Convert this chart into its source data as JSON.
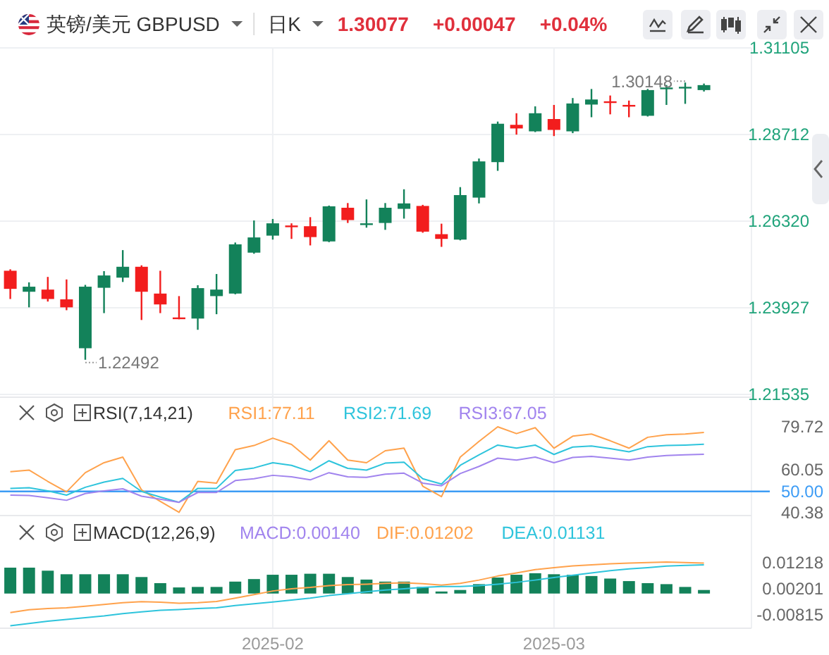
{
  "chart_data": [
    {
      "type": "candlestick",
      "title": "英镑/美元 GBPUSD",
      "subtitle": "日K",
      "annotations": [
        "1.30077",
        "+0.00047",
        "+0.04%",
        "1.22492",
        "1.30148"
      ],
      "categories": [
        null,
        null,
        null,
        null,
        null,
        null,
        null,
        null,
        null,
        null,
        null,
        null,
        null,
        null,
        "2025-02",
        null,
        null,
        null,
        null,
        null,
        null,
        null,
        null,
        null,
        null,
        null,
        null,
        null,
        null,
        "2025-03",
        null,
        null,
        null,
        null,
        null,
        null,
        null,
        null
      ],
      "ohlc": [
        [
          1.2495,
          1.2499,
          1.2417,
          1.2445
        ],
        [
          1.2437,
          1.2463,
          1.2394,
          1.2451
        ],
        [
          1.2443,
          1.2478,
          1.241,
          1.2417
        ],
        [
          1.2416,
          1.2471,
          1.2386,
          1.2394
        ],
        [
          1.2281,
          1.2456,
          1.22492,
          1.2451
        ],
        [
          1.2448,
          1.2494,
          1.2378,
          1.2482
        ],
        [
          1.2476,
          1.2552,
          1.2464,
          1.2506
        ],
        [
          1.2506,
          1.251,
          1.2359,
          1.2437
        ],
        [
          1.2432,
          1.2495,
          1.2378,
          1.2402
        ],
        [
          1.2366,
          1.2425,
          1.2361,
          1.2363
        ],
        [
          1.2363,
          1.2455,
          1.2332,
          1.2447
        ],
        [
          1.2425,
          1.2486,
          1.2375,
          1.2443
        ],
        [
          1.2432,
          1.2573,
          1.243,
          1.2568
        ],
        [
          1.2545,
          1.2634,
          1.2542,
          1.2587
        ],
        [
          1.2592,
          1.2638,
          1.2581,
          1.2626
        ],
        [
          1.262,
          1.2626,
          1.2583,
          1.2617
        ],
        [
          1.2618,
          1.2643,
          1.2565,
          1.2588
        ],
        [
          1.2576,
          1.2675,
          1.2574,
          1.2673
        ],
        [
          1.2669,
          1.2682,
          1.2627,
          1.2635
        ],
        [
          1.2623,
          1.2692,
          1.2614,
          1.2626
        ],
        [
          1.2627,
          1.2682,
          1.2608,
          1.2669
        ],
        [
          1.2666,
          1.272,
          1.2639,
          1.2681
        ],
        [
          1.2674,
          1.2677,
          1.26,
          1.2603
        ],
        [
          1.2596,
          1.2625,
          1.2561,
          1.2583
        ],
        [
          1.2581,
          1.2726,
          1.2579,
          1.2704
        ],
        [
          1.2697,
          1.2805,
          1.2681,
          1.2797
        ],
        [
          1.2795,
          1.2907,
          1.2771,
          1.2901
        ],
        [
          1.2898,
          1.293,
          1.2871,
          1.2888
        ],
        [
          1.288,
          1.2949,
          1.2878,
          1.293
        ],
        [
          1.2914,
          1.2953,
          1.2867,
          1.2884
        ],
        [
          1.288,
          1.2972,
          1.2875,
          1.2957
        ],
        [
          1.2954,
          1.2997,
          1.2919,
          1.2968
        ],
        [
          1.2963,
          1.2979,
          1.2927,
          1.2959
        ],
        [
          1.2953,
          1.2965,
          1.2919,
          1.2949
        ],
        [
          1.2923,
          1.2997,
          1.2921,
          1.2994
        ],
        [
          1.2998,
          1.3008,
          1.2953,
          1.3001
        ],
        [
          1.3001,
          1.30148,
          1.2956,
          1.3003
        ],
        [
          1.2994,
          1.3012,
          1.299,
          1.30077
        ]
      ],
      "colors": [
        "#f21d1d",
        "#13825a",
        "#f21d1d",
        "#f21d1d",
        "#13825a",
        "#13825a",
        "#13825a",
        "#f21d1d",
        "#f21d1d",
        "#f21d1d",
        "#13825a",
        "#13825a",
        "#13825a",
        "#13825a",
        "#13825a",
        "#f21d1d",
        "#f21d1d",
        "#13825a",
        "#f21d1d",
        "#13825a",
        "#13825a",
        "#13825a",
        "#f21d1d",
        "#f21d1d",
        "#13825a",
        "#13825a",
        "#13825a",
        "#f21d1d",
        "#13825a",
        "#f21d1d",
        "#13825a",
        "#13825a",
        "#f21d1d",
        "#f21d1d",
        "#13825a",
        "#13825a",
        "#13825a",
        "#13825a"
      ],
      "ylim": [
        1.21535,
        1.31105
      ],
      "yticks": [
        1.21535,
        1.23927,
        {
          "value": 1.2632,
          "label": "1.26320"
        },
        1.28712,
        1.31105
      ],
      "grid": true,
      "tick_labels": "y"
    },
    {
      "type": "line",
      "title": "RSI(7,14,21)",
      "legend": "top right",
      "categories": [
        null,
        null,
        null,
        null,
        null,
        null,
        null,
        null,
        null,
        null,
        null,
        null,
        null,
        null,
        "2025-02",
        null,
        null,
        null,
        null,
        null,
        null,
        null,
        null,
        null,
        null,
        null,
        null,
        null,
        null,
        "2025-03",
        null,
        null,
        null,
        null,
        null,
        null,
        null,
        null
      ],
      "series": [
        {
          "name": "RSI1:77.11",
          "color": "#ffa24c",
          "values": [
            59.1,
            59.8,
            54.6,
            49.8,
            58.6,
            63.2,
            65.8,
            50.7,
            45.4,
            40.38,
            54.6,
            53.8,
            69.2,
            71.1,
            74.5,
            71.6,
            64.4,
            73.3,
            64.4,
            63.2,
            68.7,
            69.9,
            52.4,
            47.6,
            65.8,
            73.0,
            79.72,
            76.6,
            79.3,
            69.9,
            75.4,
            76.4,
            73.3,
            69.9,
            74.9,
            76.1,
            76.4,
            77.11
          ]
        },
        {
          "name": "RSI2:71.69",
          "color": "#2ec4dc",
          "values": [
            51.4,
            51.7,
            50.2,
            48.3,
            51.9,
            54.3,
            56.0,
            50.0,
            47.4,
            45.0,
            51.4,
            51.4,
            59.6,
            60.8,
            63.2,
            62.0,
            59.1,
            64.1,
            60.6,
            59.8,
            63.0,
            63.4,
            55.8,
            53.4,
            62.0,
            66.8,
            71.3,
            69.9,
            71.3,
            67.0,
            70.4,
            70.9,
            69.7,
            68.2,
            70.6,
            71.1,
            71.3,
            71.69
          ]
        },
        {
          "name": "RSI3:67.05",
          "color": "#a184ee",
          "values": [
            48.3,
            48.1,
            47.1,
            45.9,
            49.0,
            50.2,
            51.2,
            47.8,
            46.4,
            45.0,
            49.5,
            49.5,
            55.0,
            55.8,
            57.4,
            56.7,
            55.3,
            58.6,
            56.7,
            56.5,
            57.9,
            58.4,
            53.8,
            52.6,
            58.2,
            61.5,
            65.3,
            64.4,
            65.8,
            63.2,
            65.6,
            66.1,
            65.3,
            64.4,
            65.8,
            66.5,
            66.8,
            67.05
          ]
        }
      ],
      "ylim": [
        40.38,
        79.72
      ],
      "yticks": [
        40.38,
        60.05,
        79.72
      ],
      "ref_lines": [
        {
          "axis": "y",
          "value": 50,
          "label": "50.00",
          "color": "#3d9cf5"
        }
      ],
      "grid": "x",
      "tick_labels": "y"
    },
    {
      "type": "bar",
      "title": "MACD(12,26,9)",
      "annotations": [
        "MACD:0.00140"
      ],
      "legend": "top right",
      "categories": [
        null,
        null,
        null,
        null,
        null,
        null,
        null,
        null,
        null,
        null,
        null,
        null,
        null,
        null,
        "2025-02",
        null,
        null,
        null,
        null,
        null,
        null,
        null,
        null,
        null,
        null,
        null,
        null,
        null,
        null,
        "2025-03",
        null,
        null,
        null,
        null,
        null,
        null,
        null,
        null
      ],
      "series": [
        {
          "type": "bar",
          "color": "#13825a",
          "values": [
            0.0102,
            0.0102,
            0.009,
            0.0076,
            0.0076,
            0.0076,
            0.0076,
            0.0065,
            0.0041,
            0.0024,
            0.0026,
            0.0026,
            0.0047,
            0.0057,
            0.0074,
            0.0074,
            0.0078,
            0.0078,
            0.0065,
            0.0055,
            0.0047,
            0.0047,
            0.0026,
            0.0008,
            0.0014,
            0.0037,
            0.0063,
            0.0074,
            0.008,
            0.0076,
            0.0074,
            0.0069,
            0.0059,
            0.0049,
            0.0041,
            0.0037,
            0.0026,
            0.0014
          ]
        },
        {
          "type": "line",
          "name": "DIF:0.01202",
          "color": "#ffa24c",
          "values": [
            -0.0075,
            -0.0064,
            -0.0059,
            -0.0056,
            -0.005,
            -0.0043,
            -0.0036,
            -0.0032,
            -0.0034,
            -0.0038,
            -0.0036,
            -0.0031,
            -0.0018,
            -0.0004,
            0.001,
            0.0019,
            0.0024,
            0.0031,
            0.0035,
            0.0037,
            0.004,
            0.0042,
            0.0039,
            0.0033,
            0.004,
            0.0053,
            0.0069,
            0.0081,
            0.0094,
            0.0102,
            0.0109,
            0.0113,
            0.0117,
            0.012,
            0.0122,
            0.0124,
            0.0122,
            0.01202
          ]
        },
        {
          "type": "line",
          "name": "DEA:0.01131",
          "color": "#2ec4dc",
          "values": [
            -0.0127,
            -0.0118,
            -0.0109,
            -0.0102,
            -0.0095,
            -0.0088,
            -0.0079,
            -0.0072,
            -0.0066,
            -0.0063,
            -0.0059,
            -0.0056,
            -0.0047,
            -0.004,
            -0.0033,
            -0.0026,
            -0.0018,
            -0.0008,
            -0.0001,
            0.0007,
            0.0014,
            0.0019,
            0.0024,
            0.0028,
            0.0028,
            0.0031,
            0.0037,
            0.0044,
            0.0053,
            0.0063,
            0.0072,
            0.0081,
            0.009,
            0.0097,
            0.0102,
            0.0108,
            0.0111,
            0.01131
          ]
        }
      ],
      "ylim": [
        -0.0135,
        0.0275
      ],
      "yticks": [
        -0.00815,
        0.00201,
        0.01218
      ],
      "grid": "x"
    }
  ]
}
